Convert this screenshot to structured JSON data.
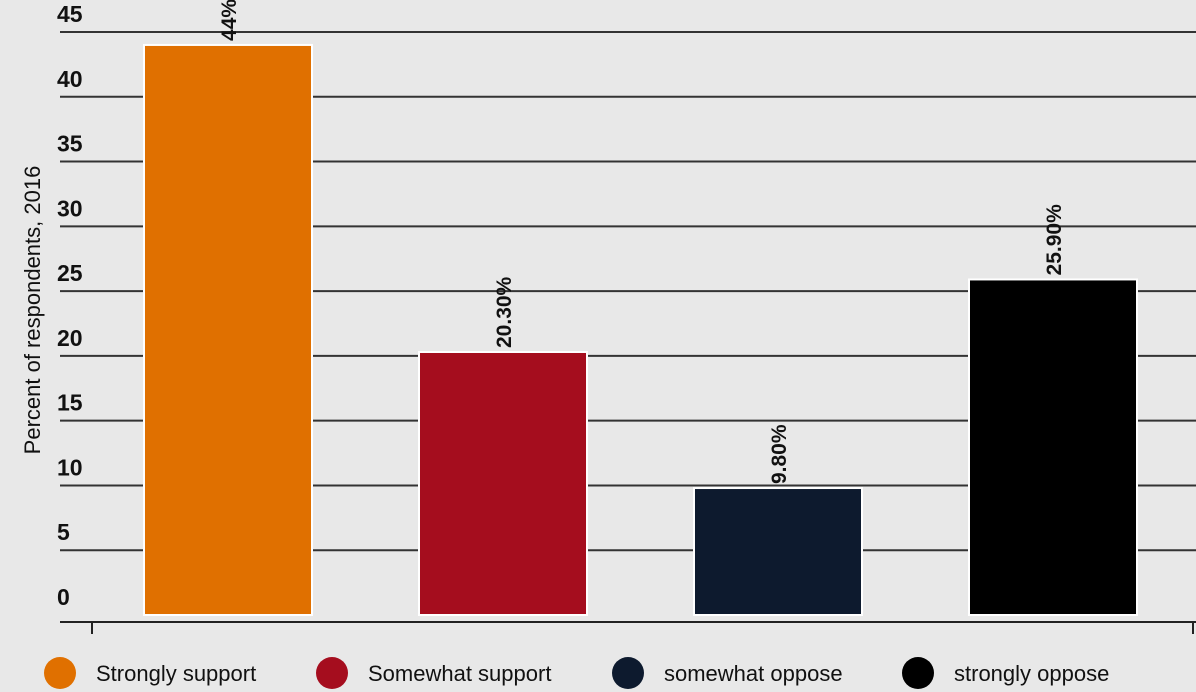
{
  "chart_data": {
    "type": "bar",
    "categories": [
      "Strongly support",
      "Somewhat support",
      "somewhat oppose",
      "strongly oppose"
    ],
    "values": [
      44,
      20.3,
      9.8,
      25.9
    ],
    "data_labels": [
      "44%",
      "20.30%",
      "9.80%",
      "25.90%"
    ],
    "colors": [
      "#e07000",
      "#a50d1e",
      "#0d1a2e",
      "#000000"
    ],
    "ylabel": "Percent of respondents, 2016",
    "xlabel": "",
    "ylim": [
      0,
      45
    ],
    "yticks": [
      0,
      5,
      10,
      15,
      20,
      25,
      30,
      35,
      40,
      45
    ],
    "grid": true,
    "legend_position": "bottom"
  }
}
